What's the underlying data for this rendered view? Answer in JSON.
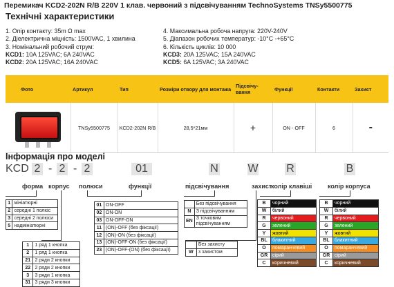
{
  "title": "Перемикач KCD2-202N R/B 220V 1 клав. червоний з підсвічуванням TechnoSystems TNSy5500775",
  "tech": {
    "heading": "Технічні характеристики",
    "left": [
      "1. Опір контакту: 35m Ω  max",
      "2. Діелектрична міцність:  1500VAC, 1 хвилина",
      "3. Номінальний робочий струм:"
    ],
    "kcd1_label": "KCD1:",
    "kcd1_value": " 10A 125VAC; 6A 240VAC",
    "kcd2_label": "KCD2:",
    "kcd2_value": " 20A 125VAC; 16A 240VAC",
    "right": [
      "4. Максимальна робоча напруга: 220V-240V",
      "5. Діапазон робочих температур: -10°C -+65°C",
      "6. Кількість циклів: 10 000"
    ],
    "kcd3_label": "KCD3:",
    "kcd3_value": " 20A 125VAC; 15A 240VAC",
    "kcd5_label": "KCD5:",
    "kcd5_value": " 6A 125VAC; 3A 240VAC"
  },
  "table": {
    "headers": [
      "Фото",
      "Артикул",
      "Тип",
      "Розміри отвору для монтажа",
      "Підсвічу-вання",
      "Функції",
      "Контакти",
      "Захист"
    ],
    "row": [
      "TNSy5500775",
      "KCD2-202N R/B",
      "28,5*21мм",
      "+",
      "ON - OFF",
      "6",
      "-"
    ]
  },
  "info": {
    "heading": "Інформація про моделі",
    "code": {
      "prefix": "KCD",
      "p1": "2",
      "p2": "2",
      "p3": "2",
      "p4": "01",
      "p5": "N",
      "p6": "W",
      "p7": "R",
      "p8": "B"
    },
    "labels": [
      "форма",
      "корпус",
      "полюси",
      "функції",
      "підсвічування",
      "захист",
      "колір клавіші",
      "колір корпуса"
    ],
    "forma": [
      {
        "k": "1",
        "v": "мініатюрні"
      },
      {
        "k": "2",
        "v": "середні 1 полюс"
      },
      {
        "k": "3",
        "v": "середні 2 полюси"
      },
      {
        "k": "5",
        "v": "надмініатюрні"
      }
    ],
    "functions": [
      {
        "k": "01",
        "v": "ON-OFF"
      },
      {
        "k": "02",
        "v": "ON-ON"
      },
      {
        "k": "03",
        "v": "ON-OFF-ON"
      },
      {
        "k": "11",
        "v": "(ON)-OFF (без фіксації)"
      },
      {
        "k": "12",
        "v": "(ON)-ON (без фіксації)"
      },
      {
        "k": "13",
        "v": "(ON)-OFF-ON (без фіксації)"
      },
      {
        "k": "23",
        "v": "(ON)-OFF-(ON) (без фіксації)"
      }
    ],
    "corpus": [
      {
        "k": "1",
        "v": "1 ряд 1 кнопка"
      },
      {
        "k": "2",
        "v": "1 ряд 1 кнопка"
      },
      {
        "k": "21",
        "v": "2 ряди 2 кнопки"
      },
      {
        "k": "22",
        "v": "2 ряди 2 кнопки"
      },
      {
        "k": "3",
        "v": "3 ряди 1 кнопка"
      },
      {
        "k": "31",
        "v": "3 ряди 3 кнопки"
      }
    ],
    "light": [
      {
        "k": "",
        "v": "Без підсвічування"
      },
      {
        "k": "N",
        "v": "З підсвічуванням"
      },
      {
        "k": "EN",
        "v": "З точковим підсвічуванням"
      }
    ],
    "protect": [
      {
        "k": "",
        "v": "Без захисту"
      },
      {
        "k": "W",
        "v": "з захистом"
      }
    ],
    "colors_key": [
      {
        "k": "B",
        "v": "чорний",
        "c": "#111111"
      },
      {
        "k": "W",
        "v": "білий",
        "c": "#ffffff"
      },
      {
        "k": "R",
        "v": "червоний",
        "c": "#e31d1d"
      },
      {
        "k": "G",
        "v": "зелений",
        "c": "#2aa52a"
      },
      {
        "k": "Y",
        "v": "жовтий",
        "c": "#f2e200"
      },
      {
        "k": "BL",
        "v": "блакитний",
        "c": "#3aa9e0"
      },
      {
        "k": "O",
        "v": "помаранчевий",
        "c": "#f58a1f"
      },
      {
        "k": "GR",
        "v": "сірий",
        "c": "#9a9a9a"
      },
      {
        "k": "C",
        "v": "коричневий",
        "c": "#7a4a2a"
      }
    ],
    "colors_body": [
      {
        "k": "B",
        "v": "чорний",
        "c": "#111111"
      },
      {
        "k": "W",
        "v": "білий",
        "c": "#ffffff"
      },
      {
        "k": "R",
        "v": "червоний",
        "c": "#e31d1d"
      },
      {
        "k": "G",
        "v": "зелений",
        "c": "#2aa52a"
      },
      {
        "k": "Y",
        "v": "жовтий",
        "c": "#f2e200"
      },
      {
        "k": "BL",
        "v": "блакитний",
        "c": "#3aa9e0"
      },
      {
        "k": "O",
        "v": "помаранчевий",
        "c": "#f58a1f"
      },
      {
        "k": "GR",
        "v": "сірий",
        "c": "#9a9a9a"
      },
      {
        "k": "C",
        "v": "коричневий",
        "c": "#7a4a2a"
      }
    ]
  }
}
